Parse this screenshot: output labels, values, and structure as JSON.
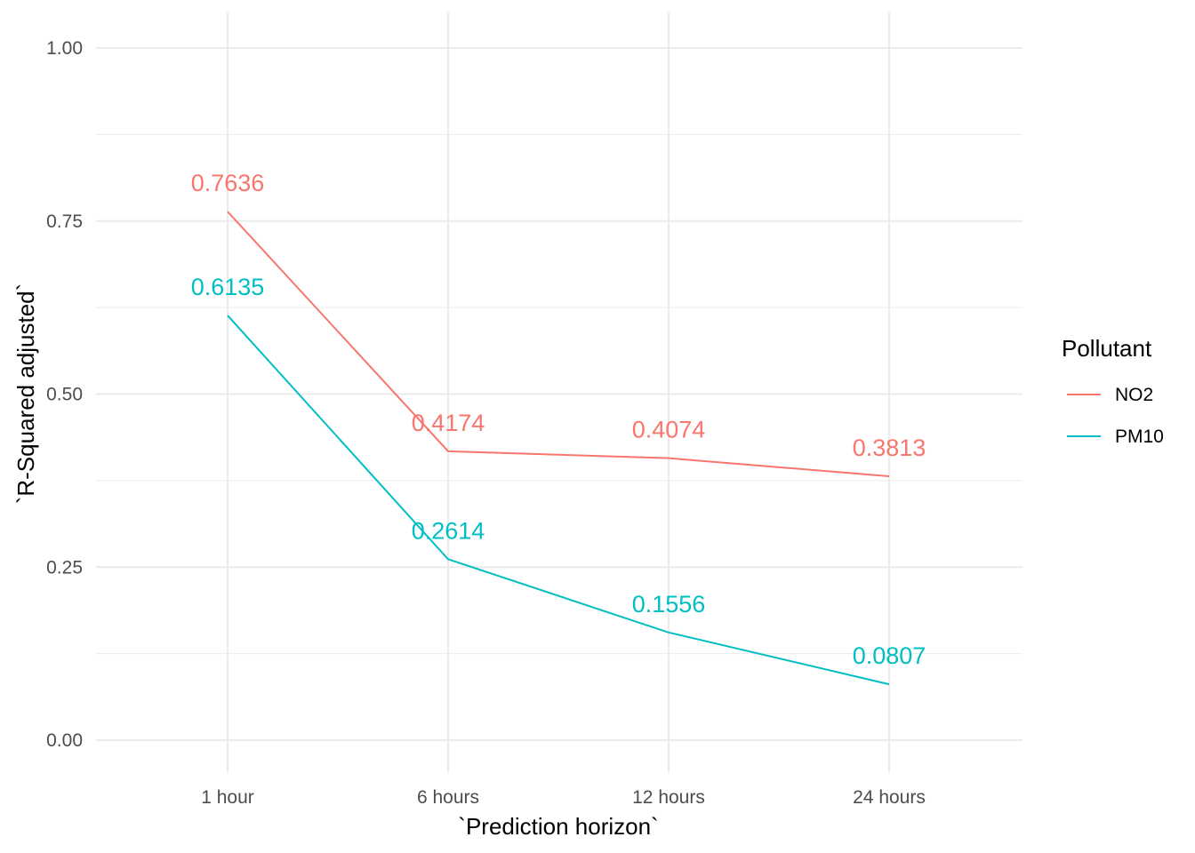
{
  "chart_data": {
    "type": "line",
    "title": "",
    "xlabel": "`Prediction horizon`",
    "ylabel": "`R-Squared adjusted`",
    "categories": [
      "1 hour",
      "6 hours",
      "12 hours",
      "24 hours"
    ],
    "ylim": [
      0,
      1
    ],
    "yticks": [
      0,
      0.25,
      0.5,
      0.75,
      1
    ],
    "ytick_labels": [
      "0.00",
      "0.25",
      "0.50",
      "0.75",
      "1.00"
    ],
    "grid": true,
    "legend": {
      "title": "Pollutant",
      "position": "right"
    },
    "series": [
      {
        "name": "NO2",
        "color": "#F8766D",
        "values": [
          0.7636,
          0.4174,
          0.4074,
          0.3813
        ],
        "labels": [
          "0.7636",
          "0.4174",
          "0.4074",
          "0.3813"
        ]
      },
      {
        "name": "PM10",
        "color": "#00BFC4",
        "values": [
          0.6135,
          0.2614,
          0.1556,
          0.0807
        ],
        "labels": [
          "0.6135",
          "0.2614",
          "0.1556",
          "0.0807"
        ]
      }
    ]
  }
}
